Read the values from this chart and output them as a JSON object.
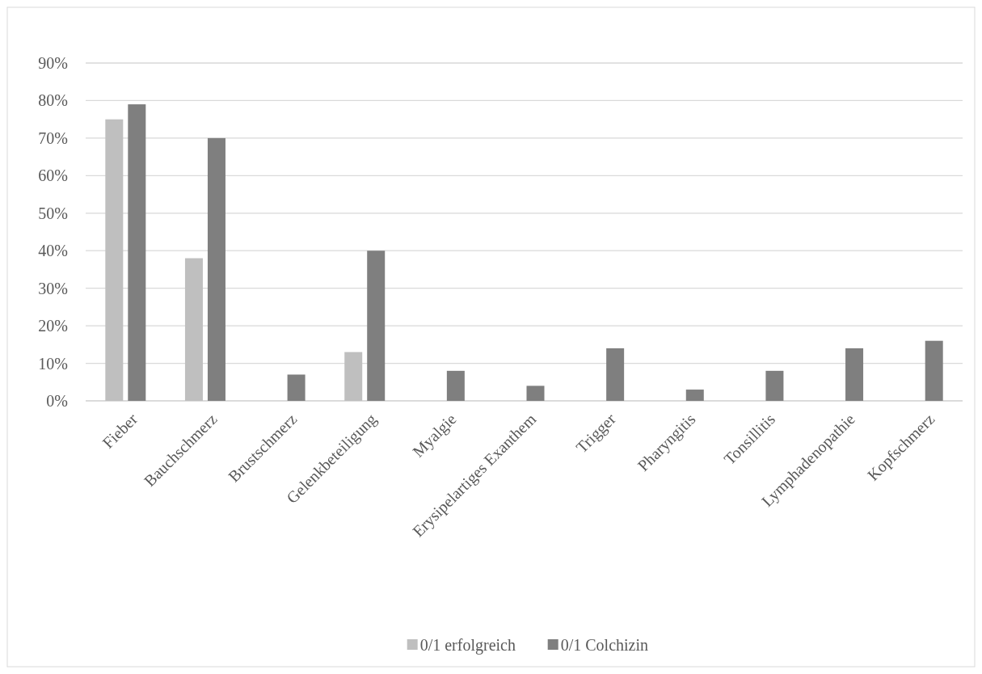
{
  "chart_data": {
    "type": "bar",
    "categories": [
      "Fieber",
      "Bauchschmerz",
      "Brustschmerz",
      "Gelenkbeteiligung",
      "Myalgie",
      "Erysipelartiges Exanthem",
      "Trigger",
      "Pharyngitis",
      "Tonsillitis",
      "Lymphadenopathie",
      "Kopfschmerz"
    ],
    "series": [
      {
        "name": "0/1 erfolgreich",
        "color": "#bfbfbf",
        "values": [
          75,
          38,
          null,
          13,
          null,
          null,
          null,
          null,
          null,
          null,
          null
        ]
      },
      {
        "name": "0/1 Colchizin",
        "color": "#7f7f7f",
        "values": [
          79,
          70,
          7,
          40,
          8,
          4,
          14,
          3,
          8,
          14,
          16
        ]
      }
    ],
    "ylim": [
      0,
      90
    ],
    "yticks": [
      {
        "value": 0,
        "label": "0%"
      },
      {
        "value": 10,
        "label": "10%"
      },
      {
        "value": 20,
        "label": "20%"
      },
      {
        "value": 30,
        "label": "30%"
      },
      {
        "value": 40,
        "label": "40%"
      },
      {
        "value": 50,
        "label": "50%"
      },
      {
        "value": 60,
        "label": "60%"
      },
      {
        "value": 70,
        "label": "70%"
      },
      {
        "value": 80,
        "label": "80%"
      },
      {
        "value": 90,
        "label": "90%"
      }
    ],
    "grid": "y",
    "legend": "bottom"
  }
}
